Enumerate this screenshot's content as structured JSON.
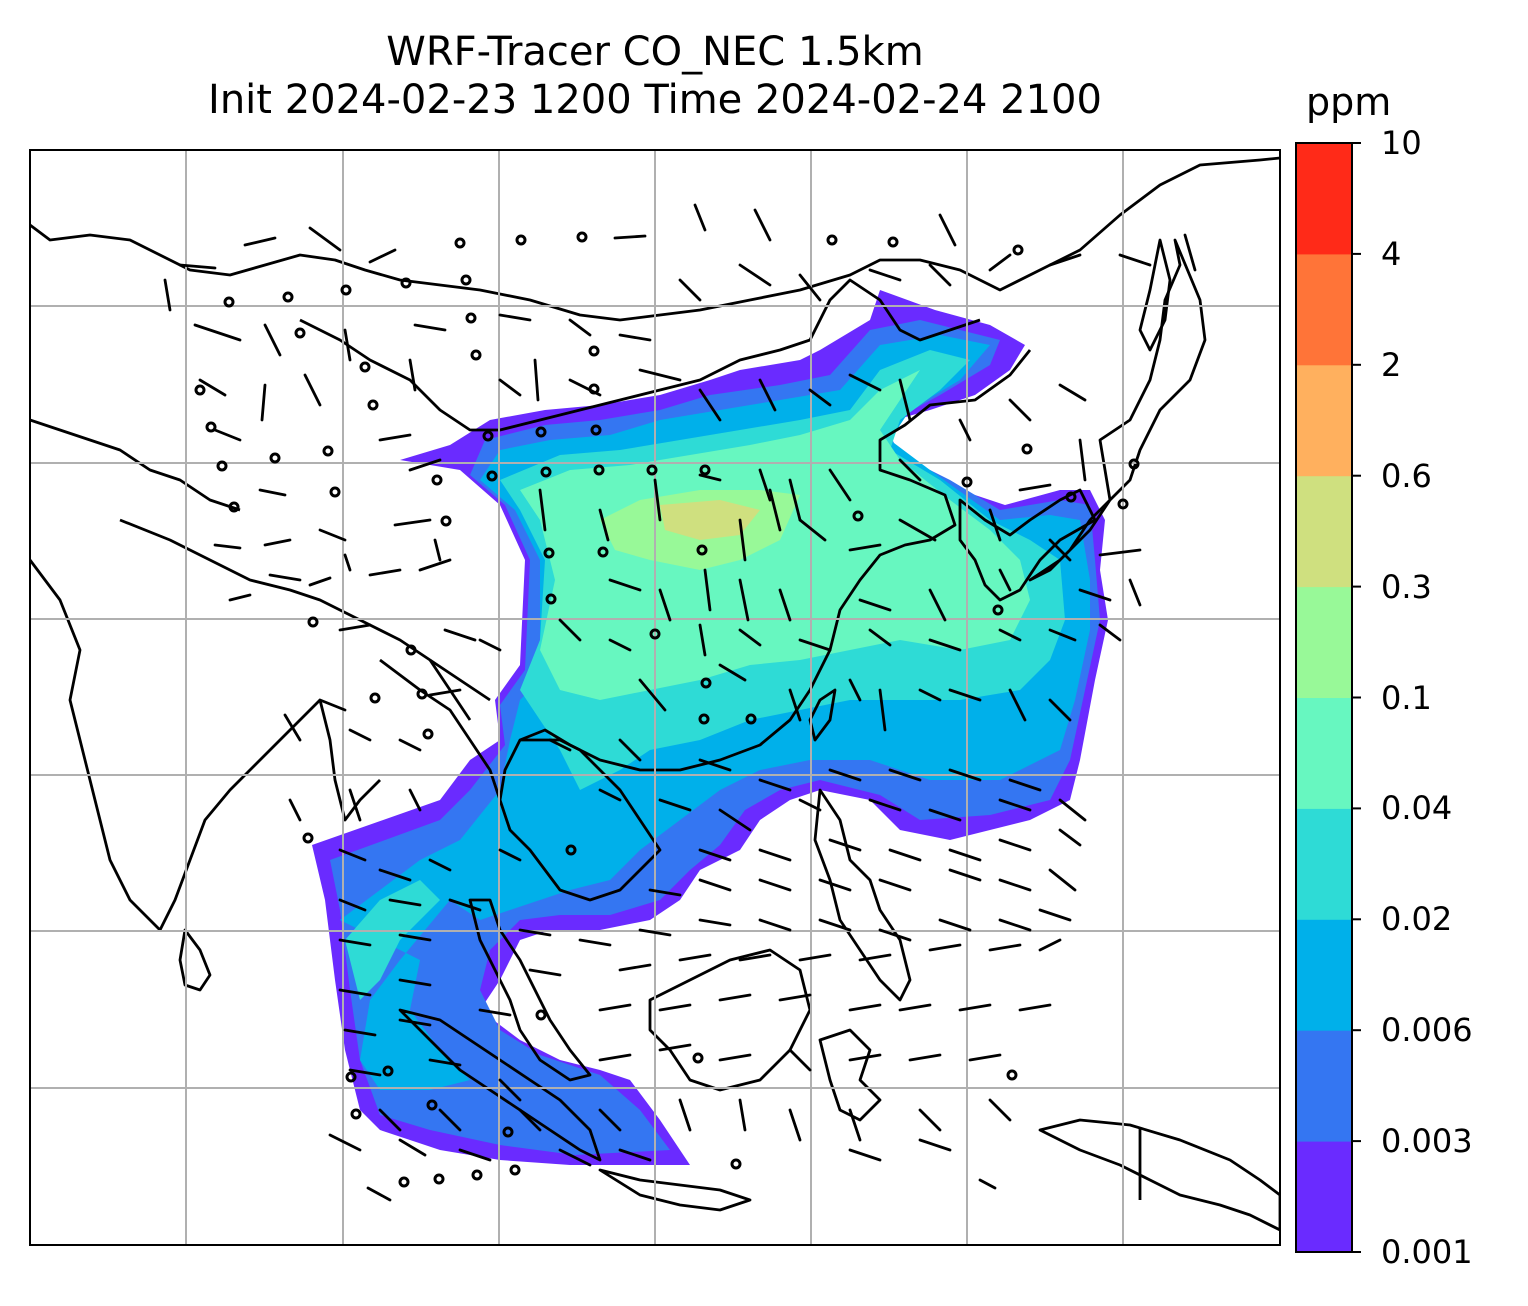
{
  "title": {
    "line1": "WRF-Tracer CO_NEC 1.5km",
    "line2": "Init 2024-02-23 1200 Time 2024-02-24 2100"
  },
  "colorbar": {
    "unit": "ppm",
    "levels": [
      "0.001",
      "0.003",
      "0.006",
      "0.02",
      "0.04",
      "0.1",
      "0.3",
      "0.6",
      "2",
      "4",
      "10"
    ],
    "colors": [
      "#6a2bff",
      "#3476f2",
      "#00b0ea",
      "#2edbd6",
      "#67f7c0",
      "#98f998",
      "#cfe07f",
      "#ffb05e",
      "#ff7438",
      "#ff2a18"
    ]
  },
  "map": {
    "variable": "CO tracer concentration",
    "wind_barbs": true,
    "gridlines": true,
    "coastlines": true,
    "country_borders": true
  }
}
